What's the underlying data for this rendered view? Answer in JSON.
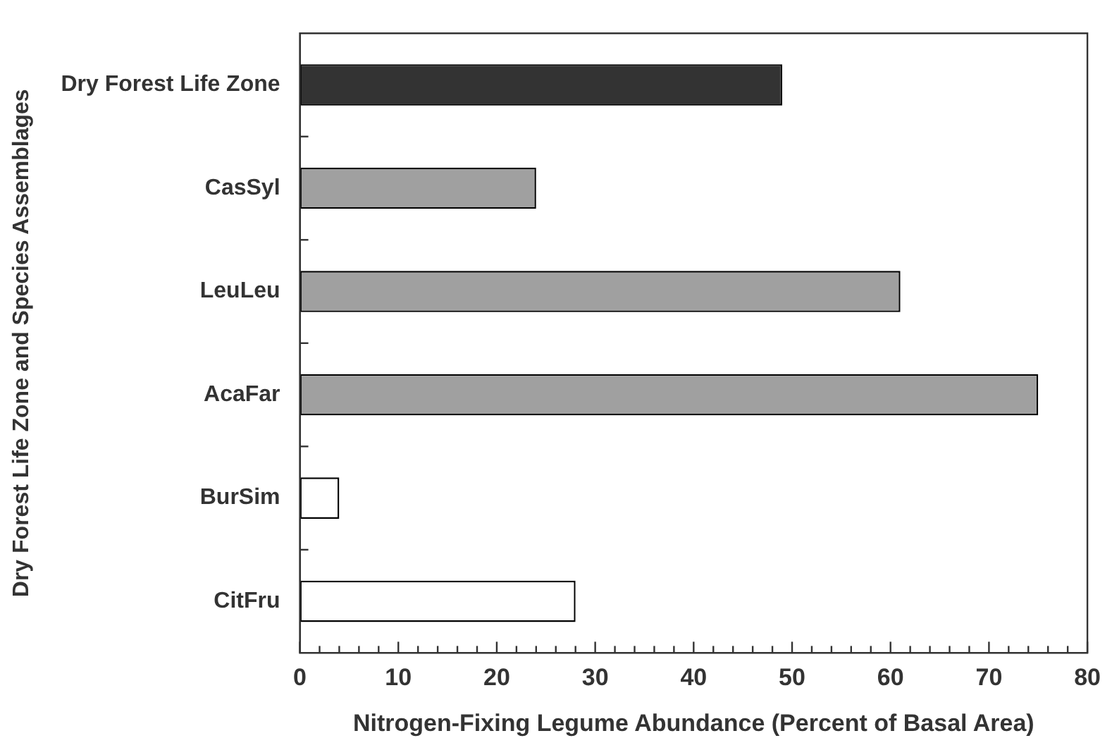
{
  "chart_data": {
    "type": "bar",
    "orientation": "horizontal",
    "xlabel": "Nitrogen-Fixing Legume Abundance (Percent of Basal Area)",
    "ylabel": "Dry Forest Life Zone and Species Assemblages",
    "categories": [
      "Dry Forest Life Zone",
      "CasSyl",
      "LeuLeu",
      "AcaFar",
      "BurSim",
      "CitFru"
    ],
    "values": [
      49,
      24,
      61,
      75,
      4,
      28
    ],
    "colors": [
      "#333333",
      "#a0a0a0",
      "#a0a0a0",
      "#a0a0a0",
      "#ffffff",
      "#ffffff"
    ],
    "xlim": [
      0,
      80
    ],
    "xticks": [
      0,
      {
        "value": 2,
        "label": null
      },
      {
        "value": 4,
        "label": null
      },
      {
        "value": 6,
        "label": null
      },
      {
        "value": 8,
        "label": null
      },
      10,
      {
        "value": 12,
        "label": null
      },
      {
        "value": 14,
        "label": null
      },
      {
        "value": 16,
        "label": null
      },
      {
        "value": 18,
        "label": null
      },
      20,
      {
        "value": 22,
        "label": null
      },
      {
        "value": 24,
        "label": null
      },
      {
        "value": 26,
        "label": null
      },
      {
        "value": 28,
        "label": null
      },
      30,
      {
        "value": 32,
        "label": null
      },
      {
        "value": 34,
        "label": null
      },
      {
        "value": 36,
        "label": null
      },
      {
        "value": 38,
        "label": null
      },
      40,
      {
        "value": 42,
        "label": null
      },
      {
        "value": 44,
        "label": null
      },
      {
        "value": 46,
        "label": null
      },
      {
        "value": 48,
        "label": null
      },
      50,
      {
        "value": 52,
        "label": null
      },
      {
        "value": 54,
        "label": null
      },
      {
        "value": 56,
        "label": null
      },
      {
        "value": 58,
        "label": null
      },
      60,
      {
        "value": 62,
        "label": null
      },
      {
        "value": 64,
        "label": null
      },
      {
        "value": 66,
        "label": null
      },
      {
        "value": 68,
        "label": null
      },
      70,
      {
        "value": 72,
        "label": null
      },
      {
        "value": 74,
        "label": null
      },
      {
        "value": 76,
        "label": null
      },
      {
        "value": 78,
        "label": null
      },
      80
    ]
  }
}
